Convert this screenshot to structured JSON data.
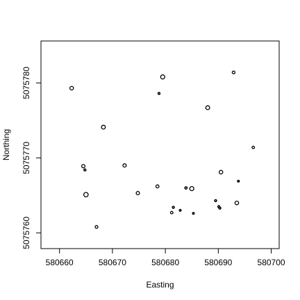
{
  "chart_data": {
    "type": "scatter",
    "title": "",
    "xlabel": "Easting",
    "ylabel": "Northing",
    "xlim": [
      580656.5,
      580701.5
    ],
    "ylim": [
      5075757.9,
      5075785.6
    ],
    "xticks": [
      580660,
      580670,
      580680,
      580690,
      580700
    ],
    "yticks": [
      5075760,
      5075770,
      5075780
    ],
    "xtick_labels": [
      "580660",
      "580670",
      "580680",
      "580690",
      "580700"
    ],
    "ytick_labels": [
      "5075760",
      "5075770",
      "5075780"
    ],
    "grid": false,
    "legend": "none",
    "marker": "open circle, size varies with value",
    "point_color": "#000000",
    "points": [
      {
        "x": 580662.3,
        "y": 5075779.3,
        "size": 1.0
      },
      {
        "x": 580679.5,
        "y": 5075780.8,
        "size": 1.2
      },
      {
        "x": 580692.9,
        "y": 5075781.4,
        "size": 0.7
      },
      {
        "x": 580678.8,
        "y": 5075778.6,
        "size": 0.4
      },
      {
        "x": 580688.0,
        "y": 5075776.7,
        "size": 1.1
      },
      {
        "x": 580668.3,
        "y": 5075774.1,
        "size": 1.1
      },
      {
        "x": 580696.6,
        "y": 5075771.4,
        "size": 0.6
      },
      {
        "x": 580664.5,
        "y": 5075768.9,
        "size": 0.9
      },
      {
        "x": 580664.8,
        "y": 5075768.4,
        "size": 0.4
      },
      {
        "x": 580672.3,
        "y": 5075769.0,
        "size": 0.9
      },
      {
        "x": 580690.5,
        "y": 5075768.1,
        "size": 1.0
      },
      {
        "x": 580693.8,
        "y": 5075766.9,
        "size": 0.3
      },
      {
        "x": 580678.5,
        "y": 5075766.2,
        "size": 0.8
      },
      {
        "x": 580683.9,
        "y": 5075766.0,
        "size": 0.5
      },
      {
        "x": 580685.0,
        "y": 5075765.9,
        "size": 1.2
      },
      {
        "x": 580665.0,
        "y": 5075765.1,
        "size": 1.3
      },
      {
        "x": 580674.8,
        "y": 5075765.3,
        "size": 0.9
      },
      {
        "x": 580689.5,
        "y": 5075764.3,
        "size": 0.4
      },
      {
        "x": 580693.5,
        "y": 5075764.0,
        "size": 1.0
      },
      {
        "x": 580690.1,
        "y": 5075763.5,
        "size": 0.4
      },
      {
        "x": 580690.3,
        "y": 5075763.3,
        "size": 0.4
      },
      {
        "x": 580681.5,
        "y": 5075763.4,
        "size": 0.4
      },
      {
        "x": 580682.8,
        "y": 5075763.0,
        "size": 0.3
      },
      {
        "x": 580681.2,
        "y": 5075762.7,
        "size": 0.6
      },
      {
        "x": 580685.3,
        "y": 5075762.6,
        "size": 0.3
      },
      {
        "x": 580667.0,
        "y": 5075760.8,
        "size": 0.7
      }
    ]
  }
}
